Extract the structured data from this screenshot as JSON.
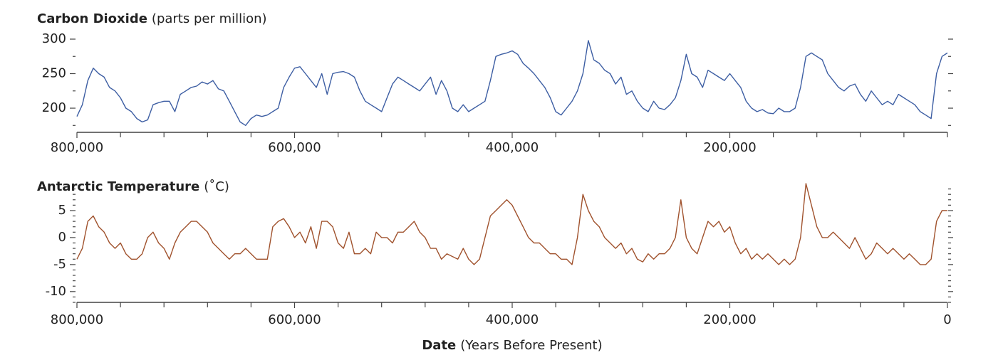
{
  "chart_data": [
    {
      "type": "line",
      "title": "Carbon Dioxide",
      "title_units": "(parts per million)",
      "color": "#3d5ea3",
      "x": [
        800000,
        795000,
        790000,
        785000,
        780000,
        775000,
        770000,
        765000,
        760000,
        755000,
        750000,
        745000,
        740000,
        735000,
        730000,
        725000,
        720000,
        715000,
        710000,
        705000,
        700000,
        695000,
        690000,
        685000,
        680000,
        675000,
        670000,
        665000,
        660000,
        655000,
        650000,
        645000,
        640000,
        635000,
        630000,
        625000,
        620000,
        615000,
        610000,
        605000,
        600000,
        595000,
        590000,
        585000,
        580000,
        575000,
        570000,
        565000,
        560000,
        555000,
        550000,
        545000,
        540000,
        535000,
        530000,
        525000,
        520000,
        515000,
        510000,
        505000,
        500000,
        495000,
        490000,
        485000,
        480000,
        475000,
        470000,
        465000,
        460000,
        455000,
        450000,
        445000,
        440000,
        435000,
        430000,
        425000,
        420000,
        415000,
        410000,
        405000,
        400000,
        395000,
        390000,
        385000,
        380000,
        375000,
        370000,
        365000,
        360000,
        355000,
        350000,
        345000,
        340000,
        335000,
        330000,
        325000,
        320000,
        315000,
        310000,
        305000,
        300000,
        295000,
        290000,
        285000,
        280000,
        275000,
        270000,
        265000,
        260000,
        255000,
        250000,
        245000,
        240000,
        235000,
        230000,
        225000,
        220000,
        215000,
        210000,
        205000,
        200000,
        195000,
        190000,
        185000,
        180000,
        175000,
        170000,
        165000,
        160000,
        155000,
        150000,
        145000,
        140000,
        135000,
        130000,
        125000,
        120000,
        115000,
        110000,
        105000,
        100000,
        95000,
        90000,
        85000,
        80000,
        75000,
        70000,
        65000,
        60000,
        55000,
        50000,
        45000,
        40000,
        35000,
        30000,
        25000,
        20000,
        15000,
        10000,
        5000,
        0
      ],
      "values": [
        188,
        205,
        240,
        258,
        250,
        245,
        230,
        225,
        215,
        200,
        195,
        185,
        180,
        183,
        205,
        208,
        210,
        210,
        195,
        220,
        225,
        230,
        232,
        238,
        235,
        240,
        228,
        225,
        210,
        195,
        180,
        175,
        185,
        190,
        188,
        190,
        195,
        200,
        230,
        245,
        258,
        260,
        250,
        240,
        230,
        250,
        220,
        250,
        252,
        253,
        250,
        245,
        225,
        210,
        205,
        200,
        195,
        215,
        235,
        245,
        240,
        235,
        230,
        225,
        235,
        245,
        220,
        240,
        225,
        200,
        195,
        205,
        195,
        200,
        205,
        210,
        240,
        275,
        278,
        280,
        283,
        278,
        265,
        258,
        250,
        240,
        230,
        215,
        195,
        190,
        200,
        210,
        225,
        250,
        298,
        270,
        265,
        255,
        250,
        235,
        245,
        220,
        225,
        210,
        200,
        195,
        210,
        200,
        198,
        205,
        215,
        240,
        278,
        250,
        245,
        230,
        255,
        250,
        245,
        240,
        250,
        240,
        230,
        210,
        200,
        195,
        198,
        193,
        192,
        200,
        195,
        195,
        200,
        230,
        275,
        280,
        275,
        270,
        250,
        240,
        230,
        225,
        232,
        235,
        220,
        210,
        225,
        215,
        205,
        210,
        205,
        220,
        215,
        210,
        205,
        195,
        190,
        185,
        250,
        275,
        280
      ],
      "xlim": [
        800000,
        0
      ],
      "xticks": [
        {
          "value": 800000,
          "label": "800,000"
        },
        {
          "value": 600000,
          "label": "600,000"
        },
        {
          "value": 400000,
          "label": "400,000"
        },
        {
          "value": 200000,
          "label": "200,000"
        }
      ],
      "xminorticks": [
        760000,
        720000,
        680000,
        640000,
        560000,
        520000,
        480000,
        440000,
        360000,
        320000,
        280000,
        240000,
        160000,
        120000,
        80000,
        40000,
        0
      ],
      "ylim": [
        165,
        300
      ],
      "yticks": [
        300,
        250,
        200
      ],
      "yminorticks": [
        275,
        225,
        175
      ]
    },
    {
      "type": "line",
      "title": "Antarctic Temperature",
      "title_units": "(˚C)",
      "color": "#a0522d",
      "x": [
        800000,
        795000,
        790000,
        785000,
        780000,
        775000,
        770000,
        765000,
        760000,
        755000,
        750000,
        745000,
        740000,
        735000,
        730000,
        725000,
        720000,
        715000,
        710000,
        705000,
        700000,
        695000,
        690000,
        685000,
        680000,
        675000,
        670000,
        665000,
        660000,
        655000,
        650000,
        645000,
        640000,
        635000,
        630000,
        625000,
        620000,
        615000,
        610000,
        605000,
        600000,
        595000,
        590000,
        585000,
        580000,
        575000,
        570000,
        565000,
        560000,
        555000,
        550000,
        545000,
        540000,
        535000,
        530000,
        525000,
        520000,
        515000,
        510000,
        505000,
        500000,
        495000,
        490000,
        485000,
        480000,
        475000,
        470000,
        465000,
        460000,
        455000,
        450000,
        445000,
        440000,
        435000,
        430000,
        425000,
        420000,
        415000,
        410000,
        405000,
        400000,
        395000,
        390000,
        385000,
        380000,
        375000,
        370000,
        365000,
        360000,
        355000,
        350000,
        345000,
        340000,
        335000,
        330000,
        325000,
        320000,
        315000,
        310000,
        305000,
        300000,
        295000,
        290000,
        285000,
        280000,
        275000,
        270000,
        265000,
        260000,
        255000,
        250000,
        245000,
        240000,
        235000,
        230000,
        225000,
        220000,
        215000,
        210000,
        205000,
        200000,
        195000,
        190000,
        185000,
        180000,
        175000,
        170000,
        165000,
        160000,
        155000,
        150000,
        145000,
        140000,
        135000,
        130000,
        125000,
        120000,
        115000,
        110000,
        105000,
        100000,
        95000,
        90000,
        85000,
        80000,
        75000,
        70000,
        65000,
        60000,
        55000,
        50000,
        45000,
        40000,
        35000,
        30000,
        25000,
        20000,
        15000,
        10000,
        5000,
        0
      ],
      "values": [
        -4,
        -2,
        3,
        4,
        2,
        1,
        -1,
        -2,
        -1,
        -3,
        -4,
        -4,
        -3,
        0,
        1,
        -1,
        -2,
        -4,
        -1,
        1,
        2,
        3,
        3,
        2,
        1,
        -1,
        -2,
        -3,
        -4,
        -3,
        -3,
        -2,
        -3,
        -4,
        -4,
        -4,
        2,
        3,
        3.5,
        2,
        0,
        1,
        -1,
        2,
        -2,
        3,
        3,
        2,
        -1,
        -2,
        1,
        -3,
        -3,
        -2,
        -3,
        1,
        0,
        0,
        -1,
        1,
        1,
        2,
        3,
        1,
        0,
        -2,
        -2,
        -4,
        -3,
        -3.5,
        -4,
        -2,
        -4,
        -5,
        -4,
        0,
        4,
        5,
        6,
        7,
        6,
        4,
        2,
        0,
        -1,
        -1,
        -2,
        -3,
        -3,
        -4,
        -4,
        -5,
        0,
        8,
        5,
        3,
        2,
        0,
        -1,
        -2,
        -1,
        -3,
        -2,
        -4,
        -4.5,
        -3,
        -4,
        -3,
        -3,
        -2,
        0,
        7,
        0,
        -2,
        -3,
        0,
        3,
        2,
        3,
        1,
        2,
        -1,
        -3,
        -2,
        -4,
        -3,
        -4,
        -3,
        -4,
        -5,
        -4,
        -5,
        -4,
        0,
        10,
        6,
        2,
        0,
        0,
        1,
        0,
        -1,
        -2,
        0,
        -2,
        -4,
        -3,
        -1,
        -2,
        -3,
        -2,
        -3,
        -4,
        -3,
        -4,
        -5,
        -5,
        -4,
        3,
        5,
        5
      ],
      "xlim": [
        800000,
        0
      ],
      "xticks": [
        {
          "value": 800000,
          "label": "800,000"
        },
        {
          "value": 600000,
          "label": "600,000"
        },
        {
          "value": 400000,
          "label": "400,000"
        },
        {
          "value": 200000,
          "label": "200,000"
        },
        0
      ],
      "xminorticks": [
        760000,
        720000,
        680000,
        640000,
        560000,
        520000,
        480000,
        440000,
        360000,
        320000,
        280000,
        240000,
        160000,
        120000,
        80000,
        40000
      ],
      "ylim": [
        -12,
        10
      ],
      "yticks": [
        5,
        0,
        -5,
        -10
      ],
      "yminorticks": [
        9,
        8,
        7,
        6,
        4,
        3,
        2,
        1,
        -1,
        -2,
        -3,
        -4,
        -6,
        -7,
        -8,
        -9,
        -11,
        -12
      ],
      "xlabel": "Date",
      "xlabel_units": "(Years Before Present)"
    }
  ]
}
